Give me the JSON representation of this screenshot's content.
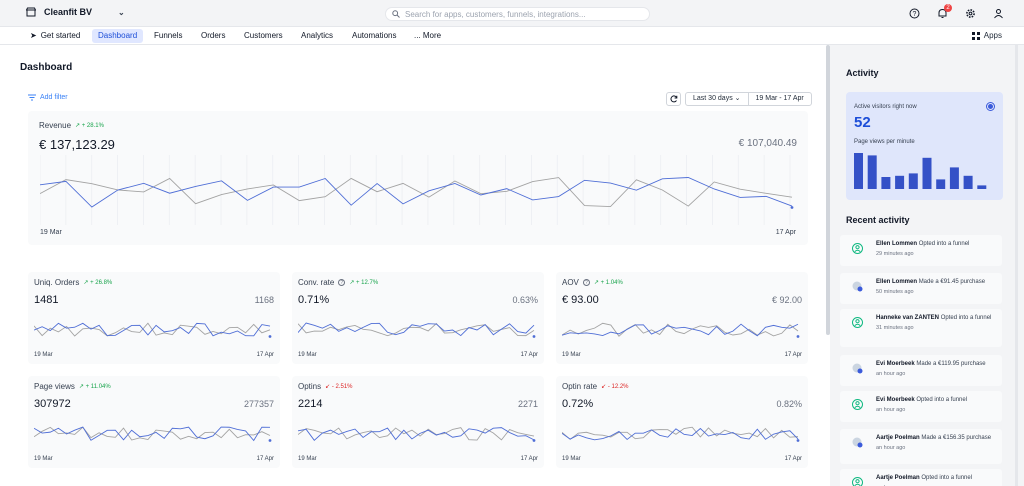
{
  "header": {
    "store_name": "Cleanfit BV",
    "search_placeholder": "Search for apps, customers, funnels, integrations...",
    "notification_count": "2"
  },
  "nav": {
    "items": [
      "Get started",
      "Dashboard",
      "Funnels",
      "Orders",
      "Customers",
      "Analytics",
      "Automations",
      "... More"
    ],
    "active": "Dashboard",
    "apps_label": "Apps"
  },
  "dashboard": {
    "title": "Dashboard",
    "add_filter": "Add filter",
    "range_preset": "Last 30 days",
    "range_dates": "19 Mar - 17 Apr",
    "revenue": {
      "label": "Revenue",
      "delta": "+ 28.1%",
      "value": "€ 137,123.29",
      "compare": "€ 107,040.49",
      "start": "19 Mar",
      "end": "17 Apr"
    },
    "kpis": [
      {
        "label": "Uniq. Orders",
        "delta": "+ 26.8%",
        "dir": "up",
        "value": "1481",
        "compare": "1168",
        "info": false
      },
      {
        "label": "Conv. rate",
        "delta": "+ 12.7%",
        "dir": "up",
        "value": "0.71%",
        "compare": "0.63%",
        "info": true
      },
      {
        "label": "AOV",
        "delta": "+ 1.04%",
        "dir": "up",
        "value": "€ 93.00",
        "compare": "€ 92.00",
        "info": true
      },
      {
        "label": "Page views",
        "delta": "+ 11.04%",
        "dir": "up",
        "value": "307972",
        "compare": "277357",
        "info": false
      },
      {
        "label": "Optins",
        "delta": "- 2.51%",
        "dir": "down",
        "value": "2214",
        "compare": "2271",
        "info": false
      },
      {
        "label": "Optin rate",
        "delta": "- 12.2%",
        "dir": "down",
        "value": "0.72%",
        "compare": "0.82%",
        "info": false
      }
    ],
    "kpi_start": "19 Mar",
    "kpi_end": "17 Apr"
  },
  "activity": {
    "title": "Activity",
    "visitors_label": "Active visitors right now",
    "visitors_value": "52",
    "pageviews_label": "Page views per minute",
    "pageviews_per_minute": [
      30,
      28,
      10,
      11,
      13,
      26,
      8,
      18,
      11,
      3
    ],
    "recent_title": "Recent activity",
    "items": [
      {
        "name": "Ellen Lommen",
        "action": "Opted into a funnel",
        "time": "29 minutes ago",
        "type": "optin"
      },
      {
        "name": "Ellen Lommen",
        "action": "Made a €91.45 purchase",
        "time": "50 minutes ago",
        "type": "purchase"
      },
      {
        "name": "Hanneke van ZANTEN",
        "action": "Opted into a funnel",
        "time": "31 minutes ago",
        "type": "optin"
      },
      {
        "name": "Evi Moerbeek",
        "action": "Made a €119.95 purchase",
        "time": "an hour ago",
        "type": "purchase"
      },
      {
        "name": "Evi Moerbeek",
        "action": "Opted into a funnel",
        "time": "an hour ago",
        "type": "optin"
      },
      {
        "name": "Aartje Poelman",
        "action": "Made a €156.35 purchase",
        "time": "an hour ago",
        "type": "purchase"
      },
      {
        "name": "Aartje Poelman",
        "action": "Opted into a funnel",
        "time": "an hour ago",
        "type": "optin"
      }
    ]
  },
  "colors": {
    "accent": "#3b5bdb",
    "primary_line": "#4f6ed6",
    "compare_line": "#a3a3a3",
    "up": "#16a34a",
    "down": "#dc2626"
  }
}
